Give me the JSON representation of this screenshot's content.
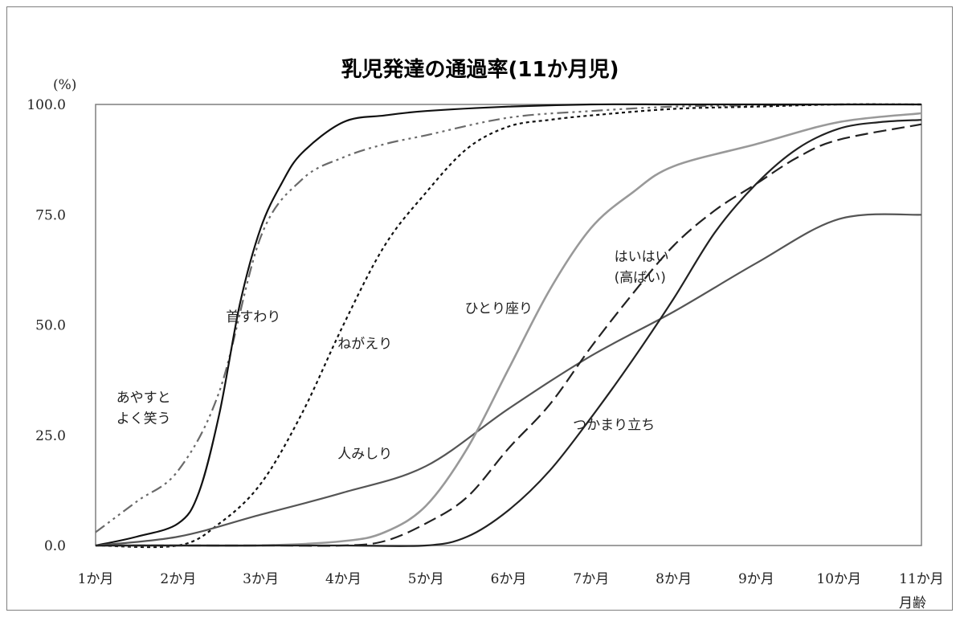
{
  "chart_data": {
    "type": "line",
    "title": "乳児発達の通過率(11か月児)",
    "ylabel": "(%)",
    "xlabel": "月齢",
    "ylim": [
      0,
      100
    ],
    "xlim": [
      1,
      11
    ],
    "grid": false,
    "y_ticks": [
      "0.0",
      "25.0",
      "50.0",
      "75.0",
      "100.0"
    ],
    "x_ticks": [
      "1か月",
      "2か月",
      "3か月",
      "4か月",
      "5か月",
      "6か月",
      "7か月",
      "8か月",
      "9か月",
      "10か月",
      "11か月"
    ],
    "series": [
      {
        "name": "あやすとよく笑う",
        "color": "#6a6a6a",
        "dash": "14,5,3,5,3,5,3,5",
        "x": [
          1,
          1.5,
          2,
          2.5,
          3,
          3.5,
          4,
          4.5,
          5,
          6,
          7,
          8,
          9,
          10,
          11
        ],
        "y": [
          3,
          10,
          17,
          35,
          70,
          83,
          88,
          91,
          93,
          97,
          98.5,
          99.5,
          99.8,
          100,
          100
        ]
      },
      {
        "name": "首すわり",
        "color": "#111111",
        "dash": "",
        "x": [
          1,
          1.5,
          2,
          2.25,
          2.5,
          2.75,
          3,
          3.25,
          3.5,
          4,
          4.5,
          5,
          6,
          7,
          8,
          9,
          10,
          11
        ],
        "y": [
          0,
          2,
          5,
          12,
          30,
          55,
          72,
          82,
          89,
          96,
          97.5,
          98.5,
          99.5,
          100,
          100,
          100,
          100,
          100
        ]
      },
      {
        "name": "ねがえり",
        "color": "#111111",
        "dash": "4,4",
        "x": [
          1,
          2,
          2.5,
          3,
          3.5,
          4,
          4.5,
          5,
          5.5,
          6,
          6.5,
          7,
          8,
          9,
          10,
          11
        ],
        "y": [
          0,
          0,
          5,
          14,
          30,
          50,
          68,
          80,
          90,
          95,
          96.5,
          97.5,
          99,
          99.5,
          100,
          100
        ]
      },
      {
        "name": "人みしり",
        "color": "#555555",
        "dash": "",
        "x": [
          1,
          2,
          3,
          4,
          5,
          6,
          7,
          8,
          9,
          10,
          11
        ],
        "y": [
          0,
          2,
          7,
          12,
          18,
          31,
          43,
          53,
          64,
          74,
          75
        ]
      },
      {
        "name": "ひとり座り",
        "color": "#999999",
        "dash": "",
        "x": [
          1,
          2,
          3,
          4,
          4.5,
          5,
          5.5,
          6,
          6.5,
          7,
          7.5,
          8,
          9,
          10,
          11
        ],
        "y": [
          0,
          0,
          0,
          1,
          3,
          9,
          22,
          40,
          58,
          72,
          80,
          86,
          91,
          96,
          98
        ]
      },
      {
        "name": "はいはい(高ばい)",
        "color": "#222222",
        "dash": "16,7",
        "x": [
          1,
          3,
          4,
          4.5,
          5,
          5.5,
          6,
          6.5,
          7,
          7.5,
          8,
          8.5,
          9,
          9.5,
          10,
          11
        ],
        "y": [
          0,
          0,
          0,
          1,
          5,
          11,
          22,
          32,
          45,
          57,
          68,
          76,
          82,
          88,
          92,
          95.5
        ]
      },
      {
        "name": "つかまり立ち",
        "color": "#222222",
        "dash": "",
        "x": [
          1,
          3,
          4,
          5,
          5.5,
          6,
          6.5,
          7,
          7.5,
          8,
          8.5,
          9,
          9.5,
          10,
          10.5,
          11
        ],
        "y": [
          0,
          0,
          0,
          0,
          2,
          8,
          17,
          29,
          42,
          56,
          71,
          82,
          90,
          94.5,
          96,
          96.5
        ]
      }
    ],
    "labels": [
      {
        "series": "あやすとよく笑う",
        "lines": [
          "あやすと",
          "よく笑う"
        ]
      },
      {
        "series": "首すわり",
        "lines": [
          "首すわり"
        ]
      },
      {
        "series": "ねがえり",
        "lines": [
          "ねがえり"
        ]
      },
      {
        "series": "人みしり",
        "lines": [
          "人みしり"
        ]
      },
      {
        "series": "ひとり座り",
        "lines": [
          "ひとり座り"
        ]
      },
      {
        "series": "はいはい(高ばい)",
        "lines": [
          "はいはい",
          "(高ばい)"
        ]
      },
      {
        "series": "つかまり立ち",
        "lines": [
          "つかまり立ち"
        ]
      }
    ]
  }
}
